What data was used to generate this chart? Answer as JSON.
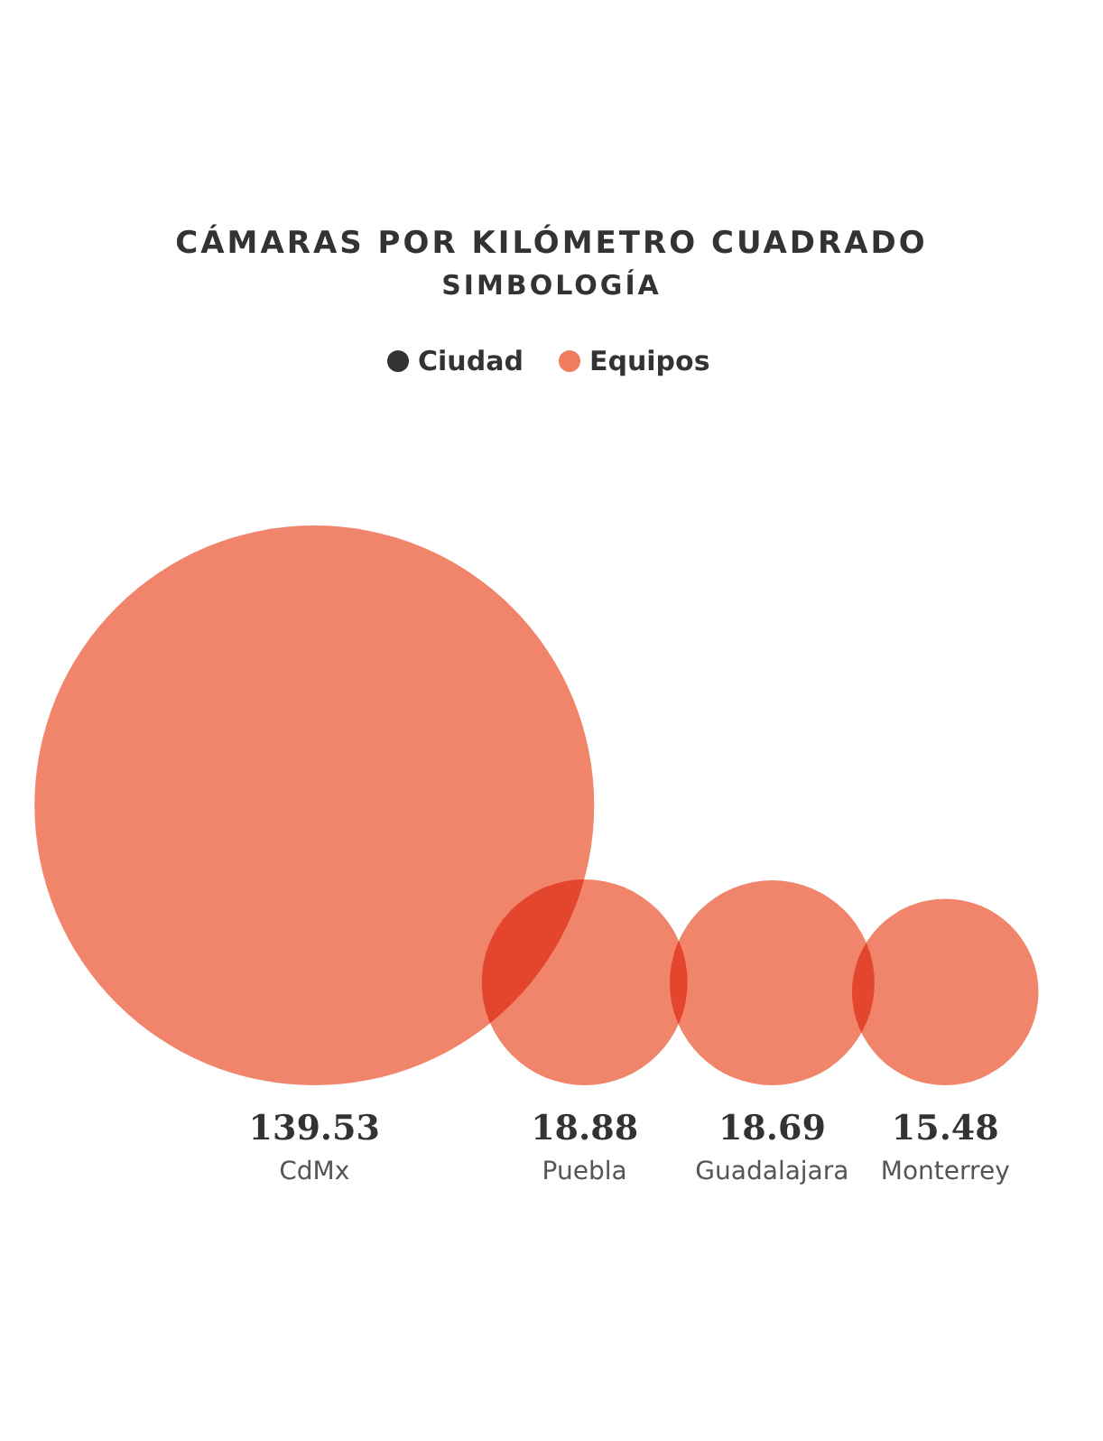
{
  "chart_data": {
    "type": "other",
    "title": "CÁMARAS POR KILÓMETRO CUADRADO",
    "legend_title": "SIMBOLOGÍA",
    "legend": "top",
    "categories": [
      "CdMx",
      "Puebla",
      "Guadalajara",
      "Monterrey"
    ],
    "series": [
      {
        "name": "Ciudad",
        "color": "#333333",
        "values": [
          null,
          null,
          null,
          null
        ]
      },
      {
        "name": "Equipos",
        "color": "#f07b5e",
        "values": [
          139.53,
          18.88,
          18.69,
          15.48
        ]
      }
    ],
    "data_labels": true
  }
}
